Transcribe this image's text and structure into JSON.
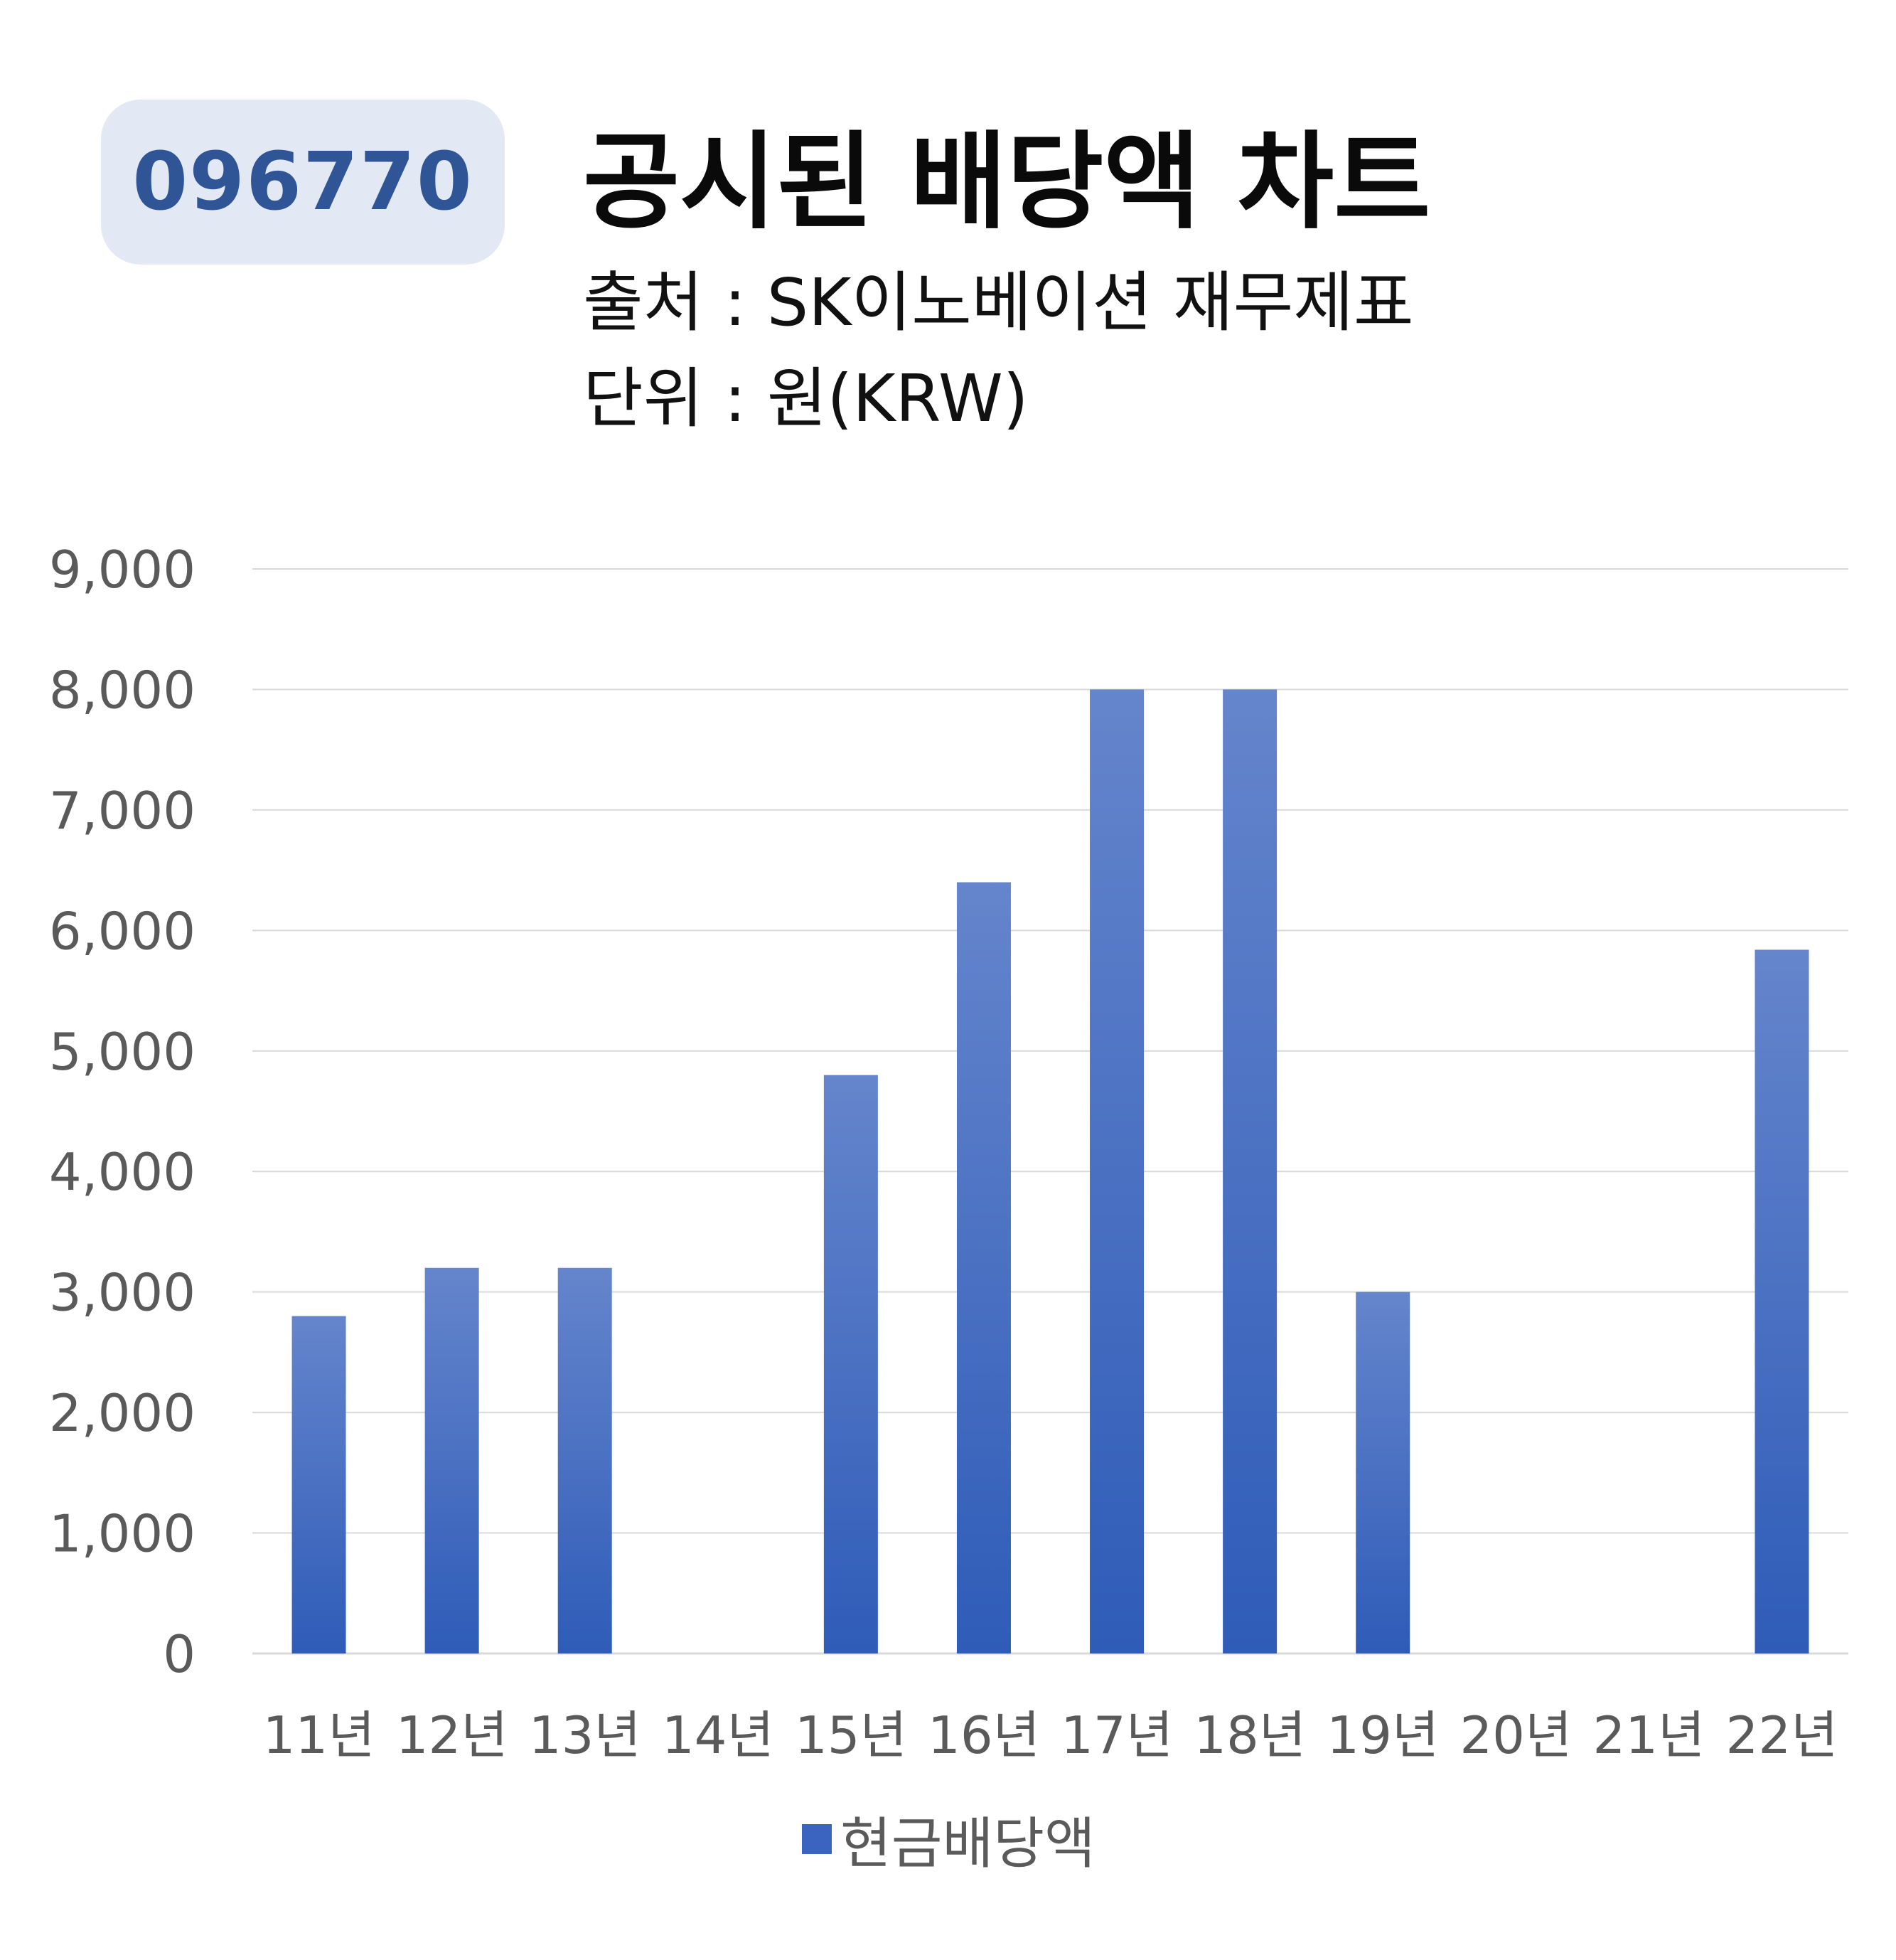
{
  "header": {
    "ticker": "096770",
    "title": "공시된 배당액 차트",
    "source": "출처 : SK이노베이션 재무제표",
    "unit": "단위 : 원(KRW)"
  },
  "colors": {
    "bar_top": "#6585cc",
    "bar_bottom": "#2f5cb8",
    "grid": "#d9d9d9",
    "badge_text": "#2f5597",
    "badge_bg": "#e2e8f4"
  },
  "chart_data": {
    "type": "bar",
    "categories": [
      "11년",
      "12년",
      "13년",
      "14년",
      "15년",
      "16년",
      "17년",
      "18년",
      "19년",
      "20년",
      "21년",
      "22년"
    ],
    "series": [
      {
        "name": "현금배당액",
        "values": [
          2800,
          3200,
          3200,
          0,
          4800,
          6400,
          8000,
          8000,
          3000,
          0,
          0,
          5840
        ]
      }
    ],
    "ylim": [
      0,
      9000
    ],
    "yticks": [
      0,
      1000,
      2000,
      3000,
      4000,
      5000,
      6000,
      7000,
      8000,
      9000
    ],
    "ytick_labels": [
      "0",
      "1,000",
      "2,000",
      "3,000",
      "4,000",
      "5,000",
      "6,000",
      "7,000",
      "8,000",
      "9,000"
    ],
    "grid": true,
    "legend_position": "bottom"
  }
}
